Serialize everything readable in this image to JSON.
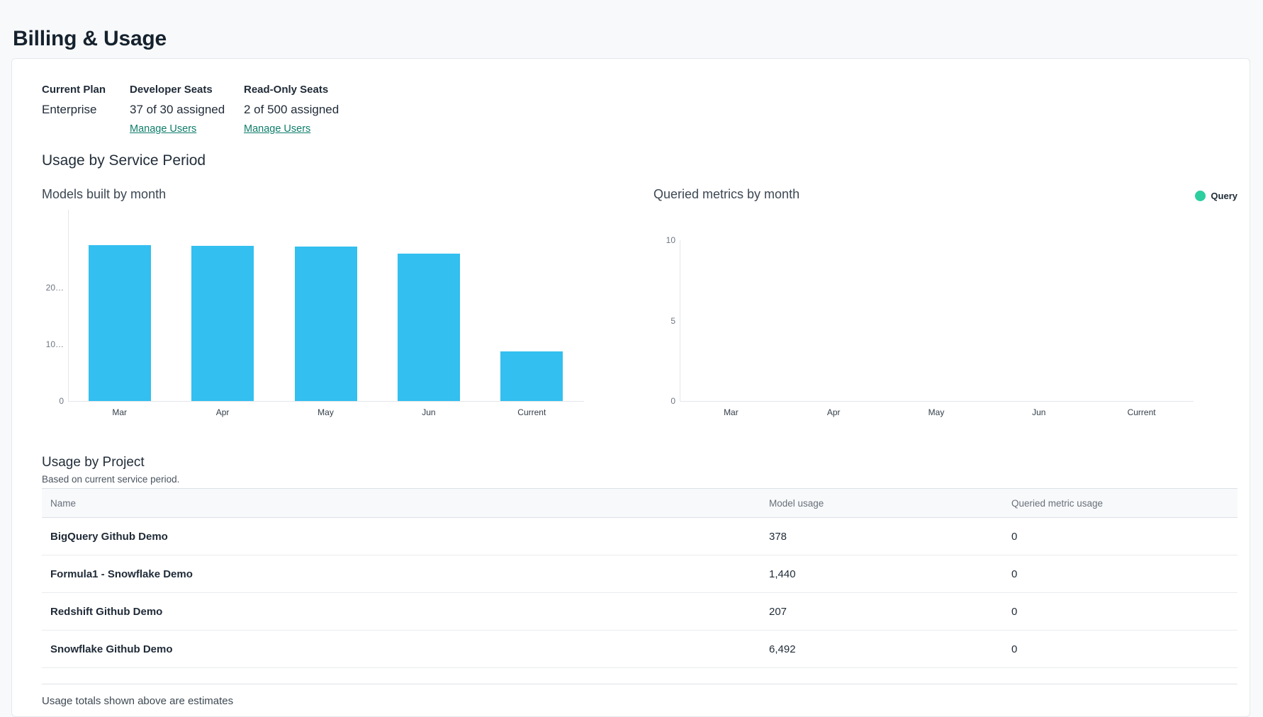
{
  "page": {
    "title": "Billing & Usage"
  },
  "plan": {
    "columns": [
      {
        "label": "Current Plan",
        "value": "Enterprise"
      },
      {
        "label": "Developer Seats",
        "value": "37 of 30 assigned",
        "link": "Manage Users"
      },
      {
        "label": "Read-Only Seats",
        "value": "2 of 500 assigned",
        "link": "Manage Users"
      }
    ]
  },
  "usage_by_service_period": {
    "heading": "Usage by Service Period"
  },
  "chart_data": [
    {
      "type": "bar",
      "title": "Models built by month",
      "categories": [
        "Mar",
        "Apr",
        "May",
        "Jun",
        "Current"
      ],
      "values": [
        27550,
        27400,
        27250,
        26050,
        8800
      ],
      "values_note": "estimated from bar heights; y-axis tick labels are truncated in the UI",
      "ylim": [
        0,
        33750
      ],
      "yticks": [
        {
          "label": "0",
          "value": 0
        },
        {
          "label": "10…",
          "value": 10000
        },
        {
          "label": "20…",
          "value": 20000
        }
      ],
      "bar_color": "#33bfef",
      "grid": false,
      "legend": null
    },
    {
      "type": "bar",
      "title": "Queried metrics by month",
      "categories": [
        "Mar",
        "Apr",
        "May",
        "Jun",
        "Current"
      ],
      "values": [
        0,
        0,
        0,
        0,
        0
      ],
      "ylim": [
        0,
        10
      ],
      "yticks": [
        {
          "label": "0",
          "value": 0
        },
        {
          "label": "5",
          "value": 5
        },
        {
          "label": "10",
          "value": 10
        }
      ],
      "bar_color": "#2dce9f",
      "grid": false,
      "legend": {
        "label": "Query",
        "color": "#2dce9f",
        "position": "top-right"
      }
    }
  ],
  "usage_by_project": {
    "heading": "Usage by Project",
    "subheading": "Based on current service period.",
    "table": {
      "columns": [
        "Name",
        "Model usage",
        "Queried metric usage"
      ],
      "rows": [
        {
          "name": "BigQuery Github Demo",
          "model_usage": "378",
          "queried_metric_usage": "0"
        },
        {
          "name": "Formula1 - Snowflake Demo",
          "model_usage": "1,440",
          "queried_metric_usage": "0"
        },
        {
          "name": "Redshift Github Demo",
          "model_usage": "207",
          "queried_metric_usage": "0"
        },
        {
          "name": "Snowflake Github Demo",
          "model_usage": "6,492",
          "queried_metric_usage": "0"
        }
      ]
    },
    "footnote": "Usage totals shown above are estimates"
  },
  "colors": {
    "bar_blue": "#33bfef",
    "legend_green": "#2dce9f",
    "link_teal": "#0e7d6b",
    "heading_navy": "#15222e"
  }
}
